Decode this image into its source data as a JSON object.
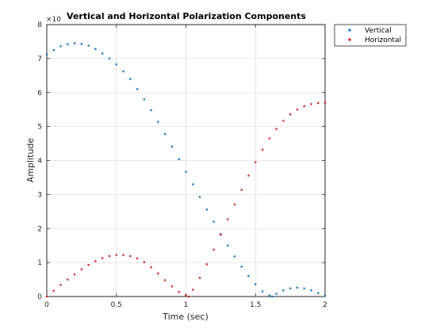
{
  "chart_data": {
    "type": "scatter",
    "title": "Vertical and Horizontal Polarization Components",
    "xlabel": "Time (sec)",
    "ylabel": "Amplitude",
    "y_exponent_label": "×10",
    "xlim": [
      0,
      2
    ],
    "ylim": [
      0,
      8
    ],
    "xticks": [
      0,
      0.5,
      1,
      1.5,
      2
    ],
    "xtick_labels": [
      "0",
      "0.5",
      "1",
      "1.5",
      "2"
    ],
    "yticks": [
      0,
      1,
      2,
      3,
      4,
      5,
      6,
      7,
      8
    ],
    "ytick_labels": [
      "0",
      "1",
      "2",
      "3",
      "4",
      "5",
      "6",
      "7",
      "8"
    ],
    "grid": true,
    "legend_position": "top-right",
    "marker_size": "small",
    "series": [
      {
        "name": "Vertical",
        "color": "#0072BD",
        "x": [
          0,
          0.05,
          0.1,
          0.15,
          0.2,
          0.25,
          0.3,
          0.35,
          0.4,
          0.45,
          0.5,
          0.55,
          0.6,
          0.65,
          0.7,
          0.75,
          0.8,
          0.85,
          0.9,
          0.95,
          1.0,
          1.05,
          1.1,
          1.15,
          1.2,
          1.25,
          1.3,
          1.35,
          1.4,
          1.45,
          1.5,
          1.55,
          1.6,
          1.62,
          1.65,
          1.7,
          1.75,
          1.8,
          1.85,
          1.9,
          1.95,
          2.0
        ],
        "y": [
          7.12,
          7.25,
          7.36,
          7.42,
          7.45,
          7.43,
          7.38,
          7.28,
          7.15,
          7.0,
          6.83,
          6.62,
          6.4,
          6.1,
          5.8,
          5.48,
          5.14,
          4.78,
          4.41,
          4.04,
          3.67,
          3.3,
          2.93,
          2.56,
          2.2,
          1.84,
          1.5,
          1.18,
          0.88,
          0.6,
          0.36,
          0.15,
          0.03,
          0.0,
          0.08,
          0.18,
          0.24,
          0.26,
          0.24,
          0.18,
          0.1,
          0.02
        ]
      },
      {
        "name": "Horizontal",
        "color": "#D7191C",
        "x": [
          0,
          0.05,
          0.1,
          0.15,
          0.2,
          0.25,
          0.3,
          0.35,
          0.4,
          0.45,
          0.5,
          0.55,
          0.6,
          0.65,
          0.7,
          0.75,
          0.8,
          0.85,
          0.9,
          0.95,
          1.0,
          1.02,
          1.05,
          1.1,
          1.15,
          1.2,
          1.25,
          1.3,
          1.35,
          1.4,
          1.45,
          1.5,
          1.55,
          1.6,
          1.65,
          1.7,
          1.75,
          1.8,
          1.85,
          1.9,
          1.95,
          2.0
        ],
        "y": [
          0.0,
          0.17,
          0.34,
          0.5,
          0.65,
          0.8,
          0.93,
          1.04,
          1.13,
          1.19,
          1.22,
          1.22,
          1.19,
          1.12,
          1.01,
          0.86,
          0.68,
          0.48,
          0.3,
          0.14,
          0.04,
          0.0,
          0.2,
          0.55,
          0.95,
          1.38,
          1.82,
          2.27,
          2.71,
          3.14,
          3.56,
          3.95,
          4.32,
          4.65,
          4.93,
          5.17,
          5.36,
          5.5,
          5.6,
          5.66,
          5.69,
          5.7
        ]
      }
    ]
  }
}
